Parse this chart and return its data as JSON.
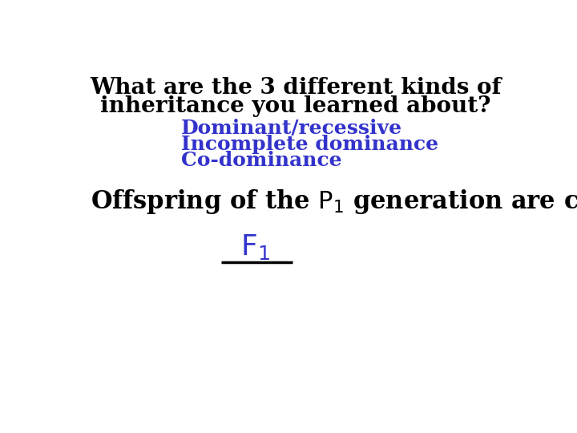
{
  "background_color": "#ffffff",
  "line1": "What are the 3 different kinds of",
  "line2": "inheritance you learned about?",
  "bullet1": "Dominant/recessive",
  "bullet2": "Incomplete dominance",
  "bullet3": "Co-dominance",
  "answer_label": "F$_1$",
  "black_color": "#000000",
  "blue_color": "#3333cc",
  "title_fontsize": 20,
  "bullet_fontsize": 18,
  "q2_fontsize": 22,
  "answer_fontsize": 26
}
